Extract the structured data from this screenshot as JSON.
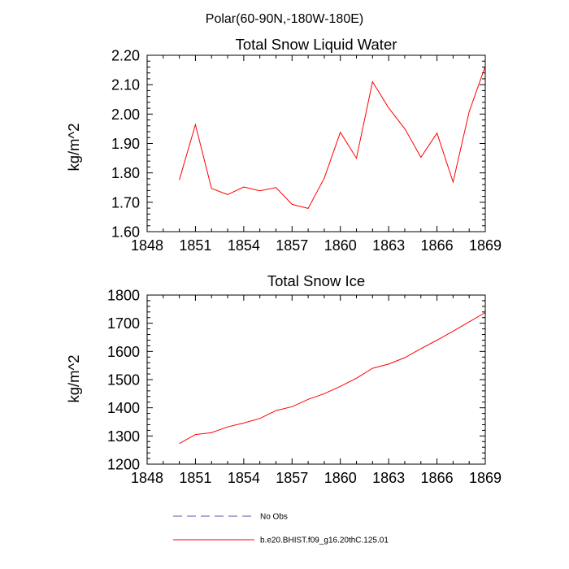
{
  "figure": {
    "title": "Polar(60-90N,-180W-180E)"
  },
  "chart_data": [
    {
      "type": "line",
      "title": "Total Snow Liquid Water",
      "xlabel": "",
      "ylabel": "kg/m^2",
      "xlim": [
        1848,
        1869
      ],
      "ylim": [
        1.6,
        2.2
      ],
      "grid": false,
      "x_ticks": [
        1848,
        1851,
        1854,
        1857,
        1860,
        1863,
        1866,
        1869
      ],
      "y_ticks": [
        1.6,
        1.7,
        1.8,
        1.9,
        2.0,
        2.1,
        2.2
      ],
      "y_tick_labels": [
        "1.60",
        "1.70",
        "1.80",
        "1.90",
        "2.00",
        "2.10",
        "2.20"
      ],
      "x": [
        1850,
        1851,
        1852,
        1853,
        1854,
        1855,
        1856,
        1857,
        1858,
        1859,
        1860,
        1861,
        1862,
        1863,
        1864,
        1865,
        1866,
        1867,
        1868,
        1869
      ],
      "series": [
        {
          "name": "b.e20.BHIST.f09_g16.20thC.125.01",
          "color": "#ff0000",
          "values": [
            1.776,
            1.964,
            1.747,
            1.726,
            1.752,
            1.739,
            1.75,
            1.693,
            1.679,
            1.782,
            1.938,
            1.85,
            2.11,
            2.021,
            1.95,
            1.853,
            1.935,
            1.769,
            2.008,
            2.163
          ]
        }
      ]
    },
    {
      "type": "line",
      "title": "Total Snow Ice",
      "xlabel": "",
      "ylabel": "kg/m^2",
      "xlim": [
        1848,
        1869
      ],
      "ylim": [
        1200,
        1800
      ],
      "grid": false,
      "x_ticks": [
        1848,
        1851,
        1854,
        1857,
        1860,
        1863,
        1866,
        1869
      ],
      "y_ticks": [
        1200,
        1300,
        1400,
        1500,
        1600,
        1700,
        1800
      ],
      "y_tick_labels": [
        "1200",
        "1300",
        "1400",
        "1500",
        "1600",
        "1700",
        "1800"
      ],
      "x": [
        1850,
        1851,
        1852,
        1853,
        1854,
        1855,
        1856,
        1857,
        1858,
        1859,
        1860,
        1861,
        1862,
        1863,
        1864,
        1865,
        1866,
        1867,
        1868,
        1869
      ],
      "series": [
        {
          "name": "b.e20.BHIST.f09_g16.20thC.125.01",
          "color": "#ff0000",
          "values": [
            1273,
            1305,
            1312,
            1332,
            1346,
            1362,
            1390,
            1404,
            1430,
            1450,
            1476,
            1505,
            1540,
            1555,
            1578,
            1610,
            1640,
            1672,
            1705,
            1738
          ]
        }
      ]
    }
  ],
  "legend": {
    "placement": "bottom",
    "entries": [
      {
        "label": "No Obs",
        "color": "#5555aa",
        "style": "dashed"
      },
      {
        "label": "b.e20.BHIST.f09_g16.20thC.125.01",
        "color": "#ff0000",
        "style": "solid"
      }
    ]
  }
}
